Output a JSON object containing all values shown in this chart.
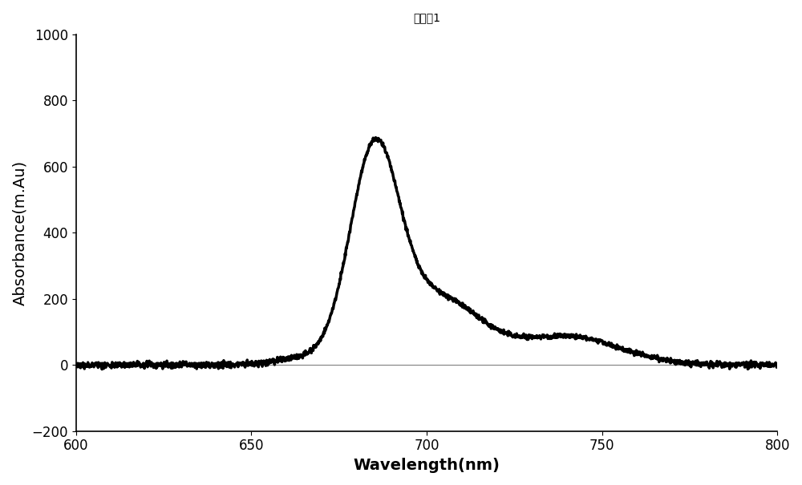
{
  "title": "对比例1",
  "xlabel": "Wavelength(nm)",
  "ylabel": "Absorbance(m.Au)",
  "xlim": [
    600,
    800
  ],
  "ylim": [
    -200,
    1000
  ],
  "xticks": [
    600,
    650,
    700,
    750,
    800
  ],
  "yticks": [
    -200,
    0,
    200,
    400,
    600,
    800,
    1000
  ],
  "line_color": "#000000",
  "line_width": 2.5,
  "background_color": "#ffffff",
  "title_fontsize": 22,
  "axis_label_fontsize": 14,
  "tick_fontsize": 12
}
